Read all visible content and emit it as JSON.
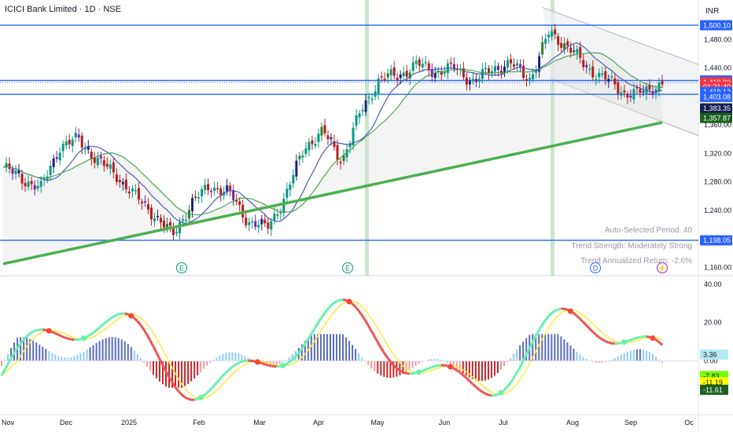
{
  "header": {
    "title": "ICICI Bank Limited · 1D · NSE",
    "currency": "INR"
  },
  "stats": {
    "period": "Auto-Selected Period: 40",
    "strength": "Trend Strength: Moderately Strong",
    "returns": "Trend Annualized Return: -2.6%"
  },
  "events": [
    {
      "label": "E",
      "month": "Jan",
      "color": "#089981"
    },
    {
      "label": "E",
      "month": "Apr",
      "color": "#089981"
    },
    {
      "label": "D",
      "month": "Aug",
      "color": "#2962ff"
    },
    {
      "label": "⚡",
      "month": "Sep",
      "color": "#9c27b0"
    }
  ],
  "chart_data": [
    {
      "type": "candlestick",
      "title": "ICICI Bank Limited · 1D · NSE",
      "x_ticks": [
        "Nov",
        "Dec",
        "2025",
        "Feb",
        "Mar",
        "Apr",
        "May",
        "Jun",
        "Jul",
        "Aug",
        "Sep",
        "Oc"
      ],
      "y_ticks": [
        1160,
        1200,
        1240,
        1280,
        1320,
        1360,
        1400,
        1440,
        1480
      ],
      "ylim": [
        1155,
        1530
      ],
      "horizontal_levels": [
        1500.1,
        1422.55,
        1403.08,
        1198.05
      ],
      "price_labels": [
        {
          "value": "1,500.10",
          "price": 1500.1,
          "color": "#2962ff"
        },
        {
          "value": "1,422.55",
          "price": 1422.55,
          "color": "#2962ff"
        },
        {
          "value": "1,419.80",
          "price": 1419.8,
          "color": "#f23645"
        },
        {
          "value": "01:21:40",
          "price": 1413.6,
          "color": "#f23645"
        },
        {
          "value": "1,419.12",
          "price": 1406.5,
          "color": "#2962ff"
        },
        {
          "value": "1,403.08",
          "price": 1399.5,
          "color": "#2962ff"
        },
        {
          "value": "1,383.35",
          "price": 1383.35,
          "color": "#131c52"
        },
        {
          "value": "1,357.87",
          "price": 1370.0,
          "color": "#1b5e20"
        },
        {
          "value": "1,198.05",
          "price": 1198.05,
          "color": "#2962ff"
        }
      ],
      "close_series": [
        {
          "month": "Nov",
          "close": 1300
        },
        {
          "month": "Nov",
          "close": 1285
        },
        {
          "month": "Dec",
          "close": 1270
        },
        {
          "month": "Dec",
          "close": 1330
        },
        {
          "month": "Dec",
          "close": 1340
        },
        {
          "month": "Dec",
          "close": 1310
        },
        {
          "month": "2025",
          "close": 1290
        },
        {
          "month": "2025",
          "close": 1260
        },
        {
          "month": "2025",
          "close": 1235
        },
        {
          "month": "2025",
          "close": 1205
        },
        {
          "month": "Feb",
          "close": 1250
        },
        {
          "month": "Feb",
          "close": 1275
        },
        {
          "month": "Feb",
          "close": 1265
        },
        {
          "month": "Mar",
          "close": 1225
        },
        {
          "month": "Mar",
          "close": 1215
        },
        {
          "month": "Mar",
          "close": 1260
        },
        {
          "month": "Mar",
          "close": 1330
        },
        {
          "month": "Apr",
          "close": 1350
        },
        {
          "month": "Apr",
          "close": 1310
        },
        {
          "month": "Apr",
          "close": 1380
        },
        {
          "month": "Apr",
          "close": 1425
        },
        {
          "month": "May",
          "close": 1430
        },
        {
          "month": "May",
          "close": 1445
        },
        {
          "month": "May",
          "close": 1435
        },
        {
          "month": "Jun",
          "close": 1440
        },
        {
          "month": "Jun",
          "close": 1420
        },
        {
          "month": "Jun",
          "close": 1440
        },
        {
          "month": "Jul",
          "close": 1445
        },
        {
          "month": "Jul",
          "close": 1425
        },
        {
          "month": "Jul",
          "close": 1490
        },
        {
          "month": "Aug",
          "close": 1470
        },
        {
          "month": "Aug",
          "close": 1440
        },
        {
          "month": "Aug",
          "close": 1425
        },
        {
          "month": "Sep",
          "close": 1405
        },
        {
          "month": "Sep",
          "close": 1405
        },
        {
          "month": "Sep",
          "close": 1420
        }
      ],
      "indicator": {
        "y_ticks": [
          40,
          20,
          0
        ],
        "ylim": [
          -28,
          44
        ],
        "labels": [
          {
            "value": "3.36",
            "y": 3.36,
            "bg": "#b2ebf2",
            "fg": "#131722"
          },
          {
            "value": "-7.83",
            "y": -7.83,
            "bg": "#76ff03",
            "fg": "#131722"
          },
          {
            "value": "-11.19",
            "y": -11.19,
            "bg": "#ffff00",
            "fg": "#131722"
          },
          {
            "value": "-11.61",
            "y": -15.0,
            "bg": "#1b5e20",
            "fg": "#ffffff"
          }
        ]
      }
    }
  ]
}
